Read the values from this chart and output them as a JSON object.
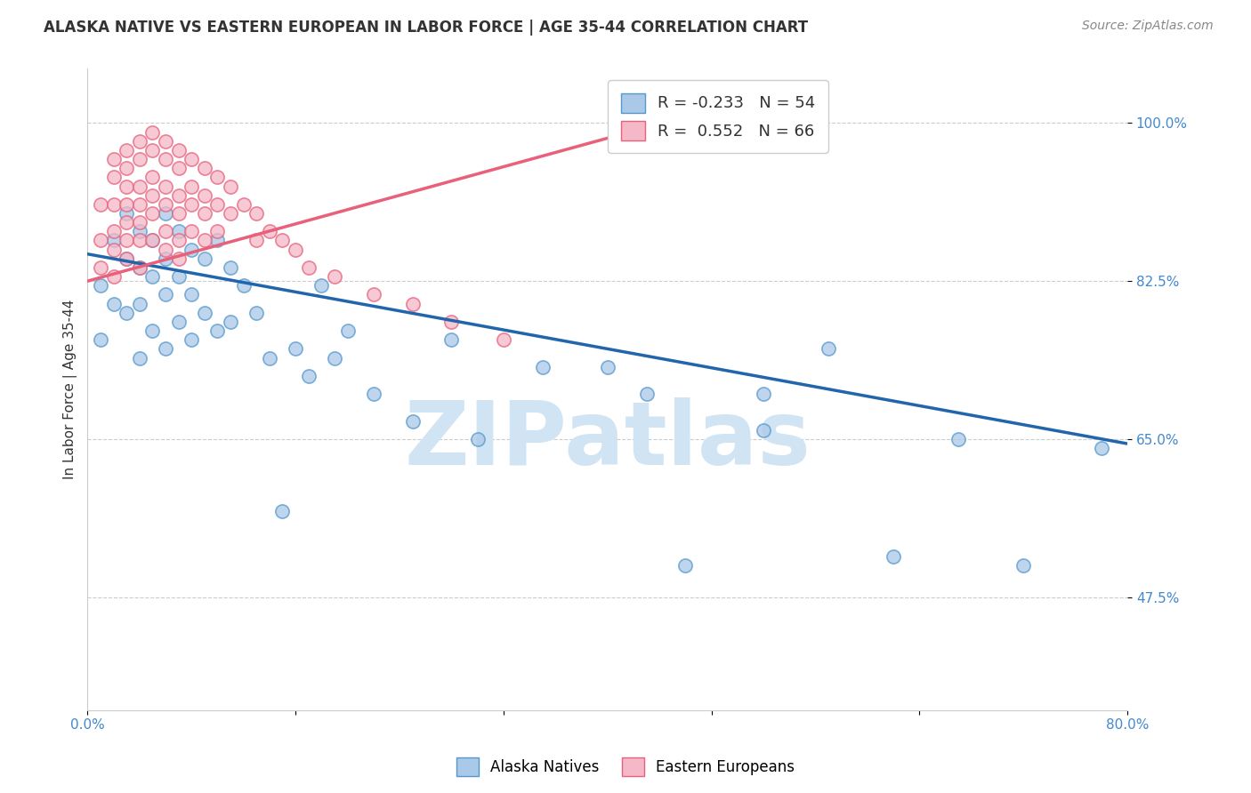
{
  "title": "ALASKA NATIVE VS EASTERN EUROPEAN IN LABOR FORCE | AGE 35-44 CORRELATION CHART",
  "source": "Source: ZipAtlas.com",
  "ylabel": "In Labor Force | Age 35-44",
  "xlim": [
    0.0,
    0.8
  ],
  "ylim": [
    0.35,
    1.06
  ],
  "yticks": [
    0.475,
    0.65,
    0.825,
    1.0
  ],
  "ytick_labels": [
    "47.5%",
    "65.0%",
    "82.5%",
    "100.0%"
  ],
  "xticks": [
    0.0,
    0.16,
    0.32,
    0.48,
    0.64,
    0.8
  ],
  "xtick_labels": [
    "0.0%",
    "",
    "",
    "",
    "",
    "80.0%"
  ],
  "blue_R": -0.233,
  "blue_N": 54,
  "pink_R": 0.552,
  "pink_N": 66,
  "blue_color": "#aac8e8",
  "pink_color": "#f4b8c8",
  "blue_edge_color": "#5599cc",
  "pink_edge_color": "#e8607a",
  "blue_line_color": "#2166ac",
  "pink_line_color": "#e8607a",
  "watermark": "ZIPatlas",
  "watermark_color": "#d0e4f4",
  "legend_label_blue": "Alaska Natives",
  "legend_label_pink": "Eastern Europeans",
  "blue_scatter_x": [
    0.01,
    0.01,
    0.02,
    0.02,
    0.03,
    0.03,
    0.03,
    0.04,
    0.04,
    0.04,
    0.04,
    0.05,
    0.05,
    0.05,
    0.06,
    0.06,
    0.06,
    0.06,
    0.07,
    0.07,
    0.07,
    0.08,
    0.08,
    0.08,
    0.09,
    0.09,
    0.1,
    0.1,
    0.11,
    0.11,
    0.12,
    0.13,
    0.14,
    0.15,
    0.16,
    0.17,
    0.18,
    0.19,
    0.2,
    0.22,
    0.25,
    0.28,
    0.3,
    0.35,
    0.4,
    0.43,
    0.46,
    0.52,
    0.52,
    0.57,
    0.62,
    0.67,
    0.72,
    0.78
  ],
  "blue_scatter_y": [
    0.82,
    0.76,
    0.87,
    0.8,
    0.9,
    0.85,
    0.79,
    0.88,
    0.84,
    0.8,
    0.74,
    0.87,
    0.83,
    0.77,
    0.9,
    0.85,
    0.81,
    0.75,
    0.88,
    0.83,
    0.78,
    0.86,
    0.81,
    0.76,
    0.85,
    0.79,
    0.87,
    0.77,
    0.84,
    0.78,
    0.82,
    0.79,
    0.74,
    0.57,
    0.75,
    0.72,
    0.82,
    0.74,
    0.77,
    0.7,
    0.67,
    0.76,
    0.65,
    0.73,
    0.73,
    0.7,
    0.51,
    0.66,
    0.7,
    0.75,
    0.52,
    0.65,
    0.51,
    0.64
  ],
  "pink_scatter_x": [
    0.01,
    0.01,
    0.01,
    0.02,
    0.02,
    0.02,
    0.02,
    0.02,
    0.02,
    0.03,
    0.03,
    0.03,
    0.03,
    0.03,
    0.03,
    0.03,
    0.04,
    0.04,
    0.04,
    0.04,
    0.04,
    0.04,
    0.04,
    0.05,
    0.05,
    0.05,
    0.05,
    0.05,
    0.05,
    0.06,
    0.06,
    0.06,
    0.06,
    0.06,
    0.06,
    0.07,
    0.07,
    0.07,
    0.07,
    0.07,
    0.07,
    0.08,
    0.08,
    0.08,
    0.08,
    0.09,
    0.09,
    0.09,
    0.09,
    0.1,
    0.1,
    0.1,
    0.11,
    0.11,
    0.12,
    0.13,
    0.13,
    0.14,
    0.15,
    0.16,
    0.17,
    0.19,
    0.22,
    0.25,
    0.28,
    0.32
  ],
  "pink_scatter_y": [
    0.91,
    0.87,
    0.84,
    0.96,
    0.94,
    0.91,
    0.88,
    0.86,
    0.83,
    0.97,
    0.95,
    0.93,
    0.91,
    0.89,
    0.87,
    0.85,
    0.98,
    0.96,
    0.93,
    0.91,
    0.89,
    0.87,
    0.84,
    0.99,
    0.97,
    0.94,
    0.92,
    0.9,
    0.87,
    0.98,
    0.96,
    0.93,
    0.91,
    0.88,
    0.86,
    0.97,
    0.95,
    0.92,
    0.9,
    0.87,
    0.85,
    0.96,
    0.93,
    0.91,
    0.88,
    0.95,
    0.92,
    0.9,
    0.87,
    0.94,
    0.91,
    0.88,
    0.93,
    0.9,
    0.91,
    0.9,
    0.87,
    0.88,
    0.87,
    0.86,
    0.84,
    0.83,
    0.81,
    0.8,
    0.78,
    0.76
  ],
  "blue_line_x": [
    0.0,
    0.8
  ],
  "blue_line_y": [
    0.855,
    0.645
  ],
  "pink_line_x": [
    0.0,
    0.455
  ],
  "pink_line_y": [
    0.825,
    1.005
  ],
  "title_fontsize": 12,
  "source_fontsize": 10,
  "axis_label_fontsize": 11,
  "tick_fontsize": 11,
  "legend_fontsize": 12,
  "background_color": "#ffffff",
  "grid_color": "#cccccc",
  "title_color": "#333333",
  "tick_color": "#4488cc"
}
